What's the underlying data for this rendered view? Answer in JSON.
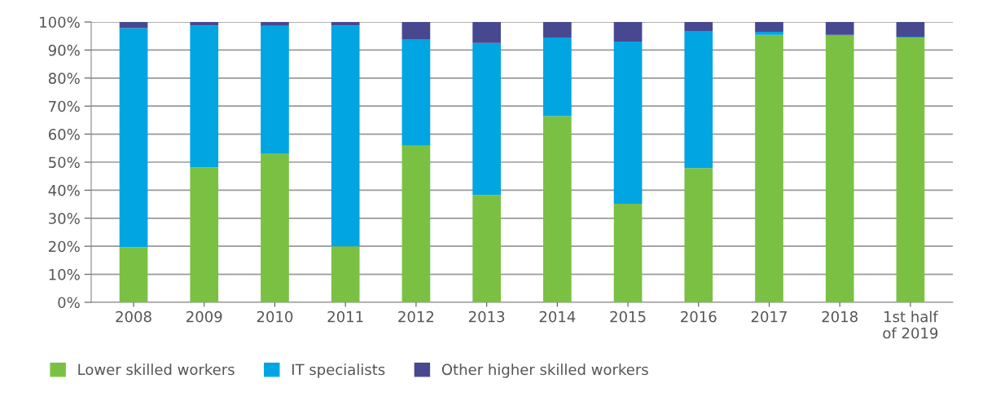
{
  "chart_data": {
    "type": "bar",
    "stacked": true,
    "categories": [
      "2008",
      "2009",
      "2010",
      "2011",
      "2012",
      "2013",
      "2014",
      "2015",
      "2016",
      "2017",
      "2018",
      "1st half\nof 2019"
    ],
    "series": [
      {
        "name": "Lower skilled workers",
        "color": "#7ac143",
        "values": [
          19.7,
          48.1,
          53.0,
          20.0,
          55.9,
          38.3,
          66.4,
          35.2,
          47.9,
          95.4,
          95.1,
          94.5
        ]
      },
      {
        "name": "IT specialists",
        "color": "#00a5e2",
        "values": [
          78.1,
          50.7,
          45.6,
          78.8,
          38.0,
          54.2,
          28.1,
          57.8,
          48.9,
          1.1,
          0.3,
          0.3
        ]
      },
      {
        "name": "Other higher skilled workers",
        "color": "#484891",
        "values": [
          2.2,
          1.2,
          1.4,
          1.2,
          6.1,
          7.5,
          5.5,
          7.0,
          3.2,
          3.5,
          4.6,
          5.2
        ]
      }
    ],
    "ylim": [
      0,
      100
    ],
    "yticks": [
      {
        "value": 0,
        "label": "0%"
      },
      {
        "value": 10,
        "label": "10%"
      },
      {
        "value": 20,
        "label": "20%"
      },
      {
        "value": 30,
        "label": "30%"
      },
      {
        "value": 40,
        "label": "40%"
      },
      {
        "value": 50,
        "label": "50%"
      },
      {
        "value": 60,
        "label": "60%"
      },
      {
        "value": 70,
        "label": "70%"
      },
      {
        "value": 80,
        "label": "80%"
      },
      {
        "value": 90,
        "label": "90%"
      },
      {
        "value": 100,
        "label": "100%"
      }
    ],
    "grid": "y",
    "legend": "bottom"
  }
}
